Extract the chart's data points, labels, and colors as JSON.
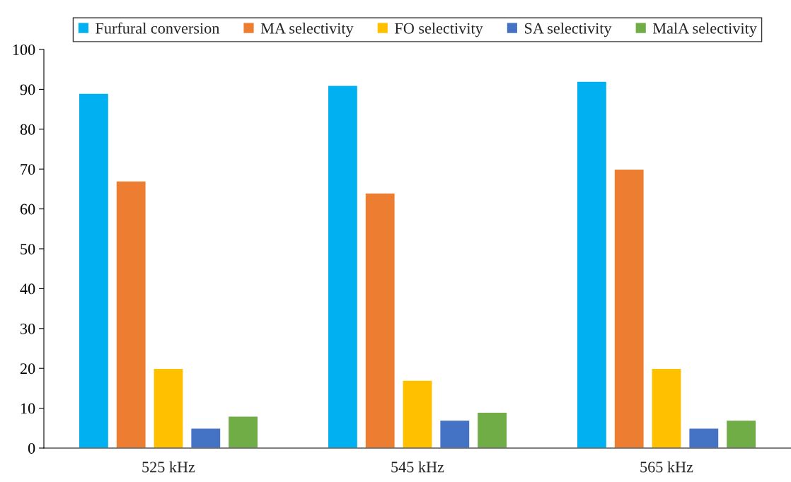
{
  "chart_data": {
    "type": "bar",
    "categories": [
      "525 kHz",
      "545 kHz",
      "565 kHz"
    ],
    "series": [
      {
        "name": "Furfural conversion",
        "color": "#00b0f0",
        "values": [
          89,
          91,
          92
        ]
      },
      {
        "name": "MA selectivity",
        "color": "#ed7d31",
        "values": [
          67,
          64,
          70
        ]
      },
      {
        "name": "FO selectivity",
        "color": "#ffc000",
        "values": [
          20,
          17,
          20
        ]
      },
      {
        "name": "SA selectivity",
        "color": "#4472c4",
        "values": [
          5,
          7,
          5
        ]
      },
      {
        "name": "MalA selectivity",
        "color": "#70ad47",
        "values": [
          8,
          9,
          7
        ]
      }
    ],
    "ylim": [
      0,
      100
    ],
    "yticks": [
      0,
      10,
      20,
      30,
      40,
      50,
      60,
      70,
      80,
      90,
      100
    ],
    "grid": false,
    "legend": "top"
  }
}
